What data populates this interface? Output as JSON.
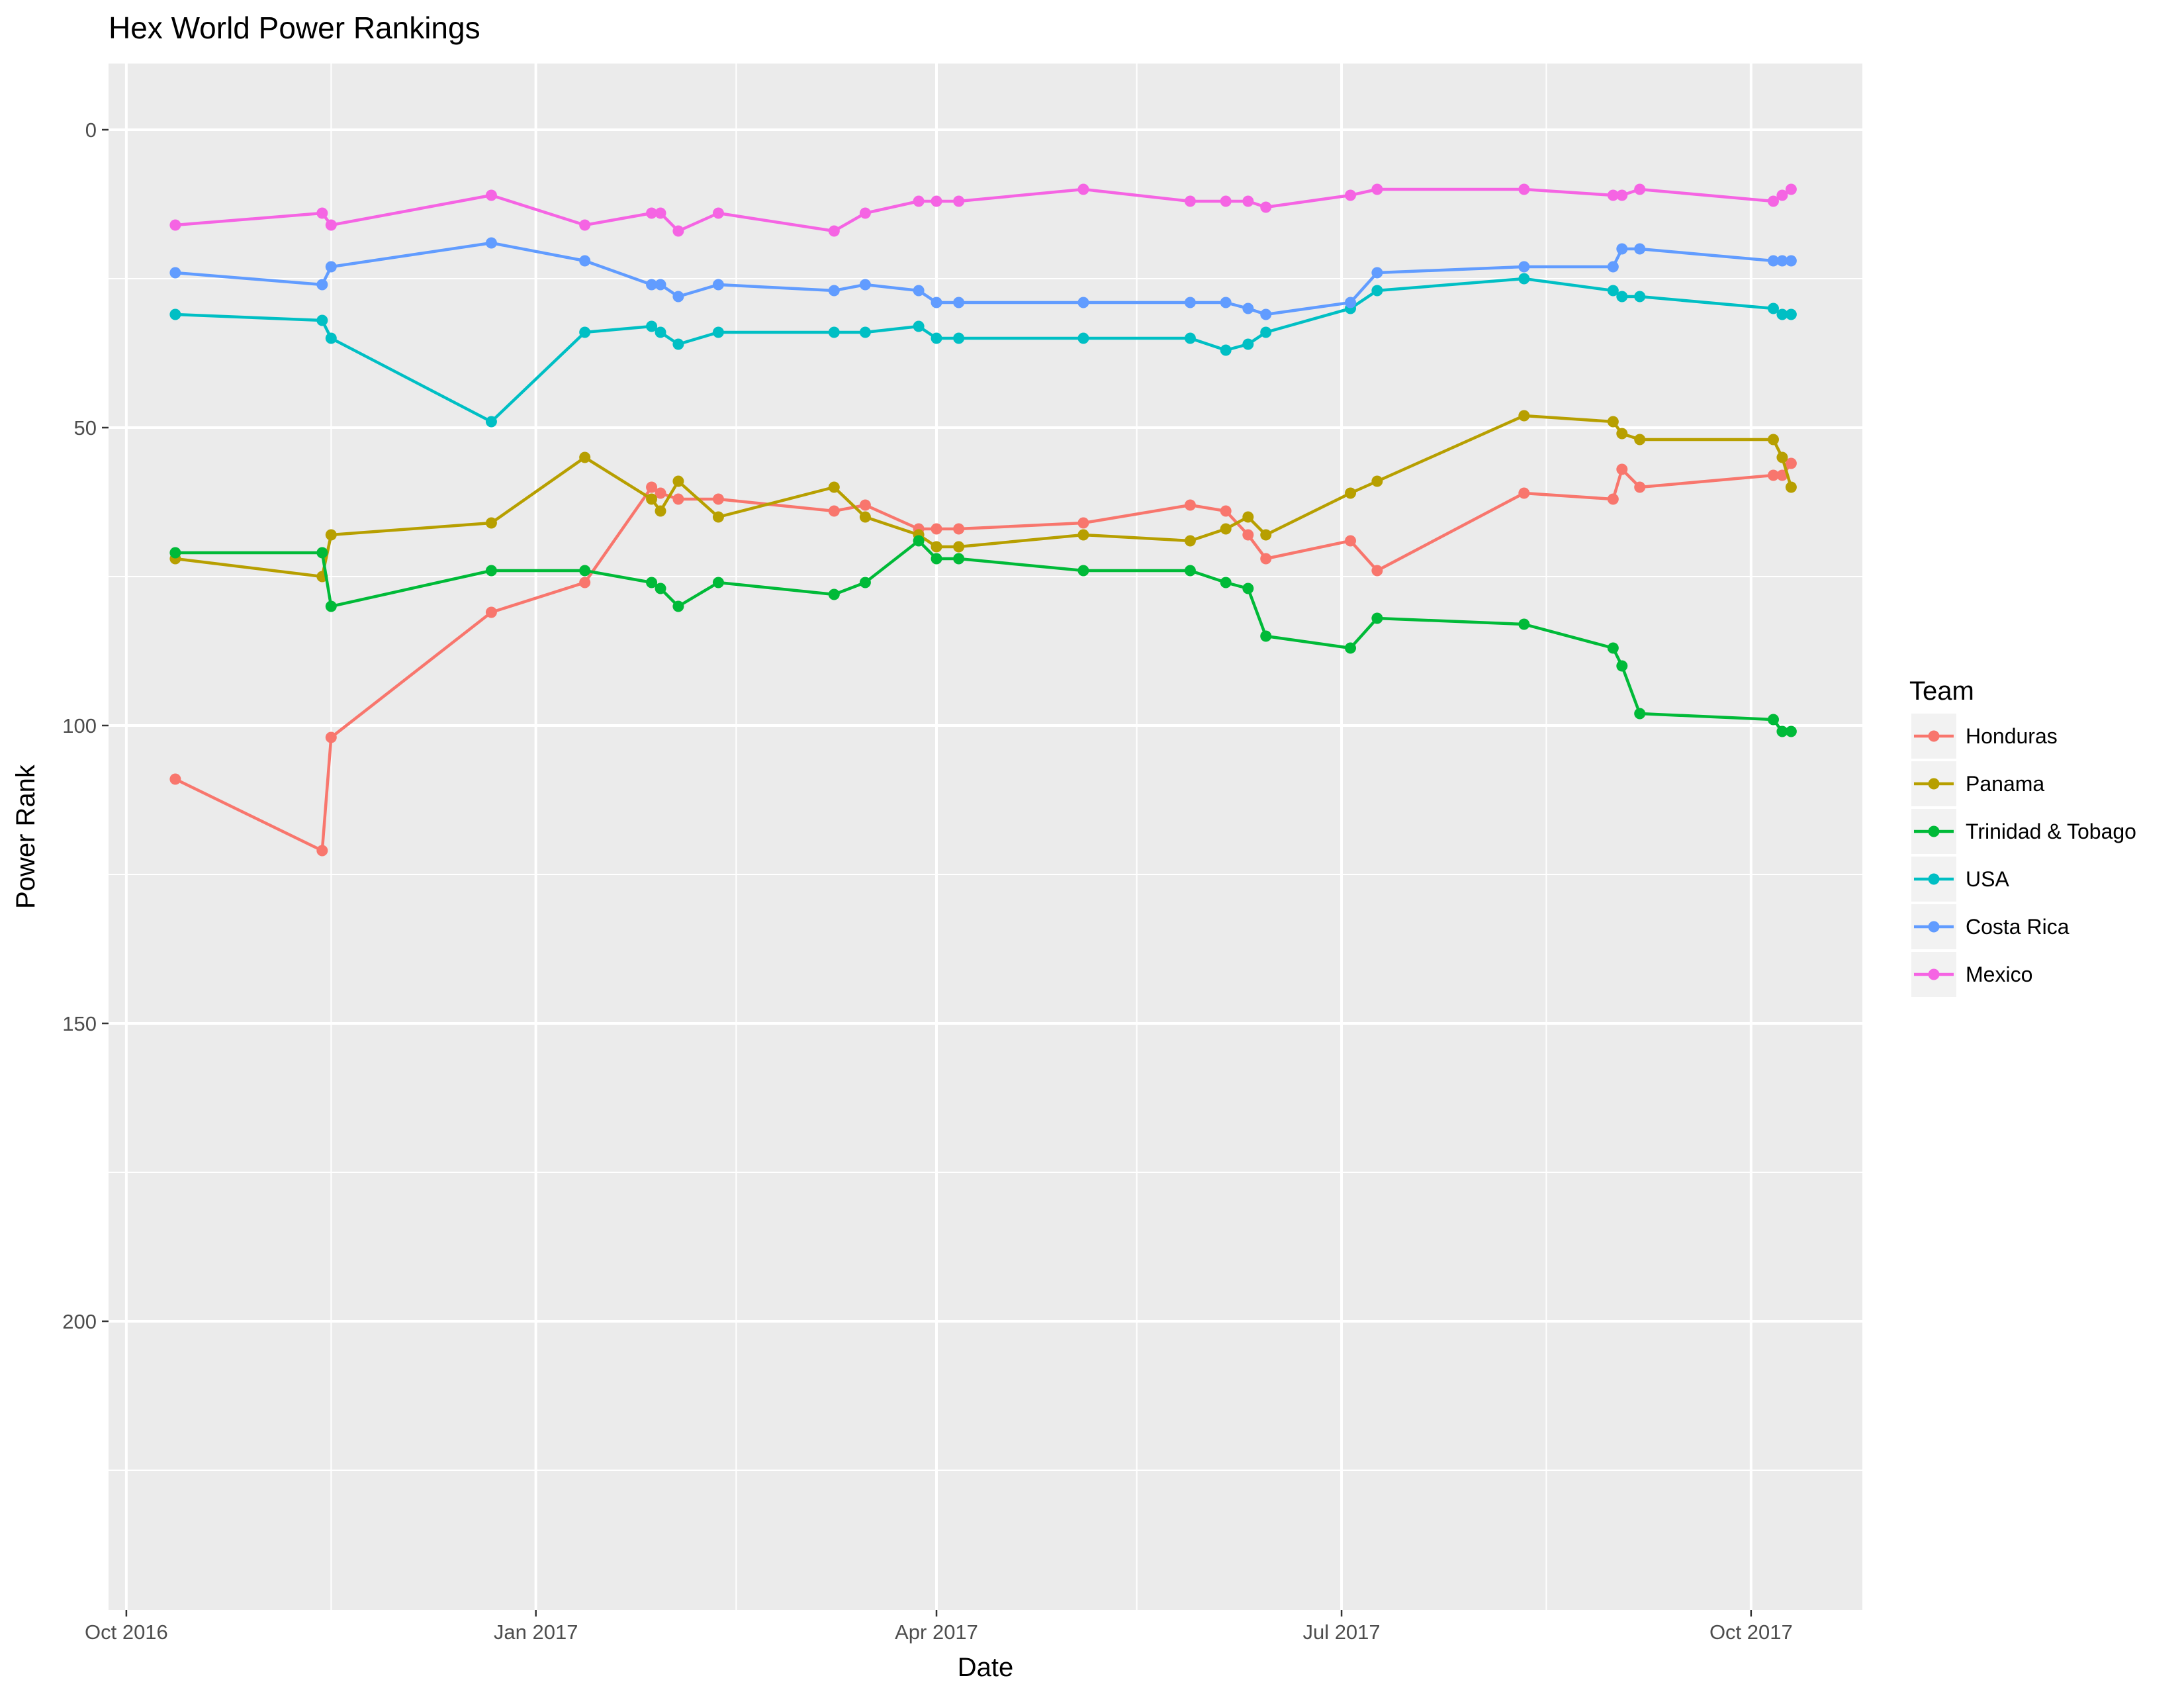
{
  "chart_data": {
    "type": "line",
    "title": "Hex World Power Rankings",
    "xlabel": "Date",
    "ylabel": "Power Rank",
    "y_reversed": true,
    "ylim": [
      0,
      240
    ],
    "xlim": [
      "2016-09-27",
      "2017-10-26"
    ],
    "x_ticks": [
      {
        "date": "2016-10-01",
        "label": "Oct 2016"
      },
      {
        "date": "2017-01-01",
        "label": "Jan 2017"
      },
      {
        "date": "2017-04-01",
        "label": "Apr 2017"
      },
      {
        "date": "2017-07-01",
        "label": "Jul 2017"
      },
      {
        "date": "2017-10-01",
        "label": "Oct 2017"
      }
    ],
    "x_minor_ticks": [
      "2016-11-16",
      "2017-02-15",
      "2017-05-16",
      "2017-08-16"
    ],
    "y_ticks": [
      0,
      50,
      100,
      150,
      200
    ],
    "y_minor_ticks": [
      25,
      75,
      125,
      175,
      225
    ],
    "grid": true,
    "legend": {
      "title": "Team",
      "position": "right"
    },
    "series": [
      {
        "name": "Honduras",
        "color": "#F8766D",
        "points": [
          [
            "2016-10-12",
            109
          ],
          [
            "2016-11-14",
            121
          ],
          [
            "2016-11-16",
            102
          ],
          [
            "2016-12-22",
            81
          ],
          [
            "2017-01-12",
            76
          ],
          [
            "2017-01-27",
            60
          ],
          [
            "2017-01-29",
            61
          ],
          [
            "2017-02-02",
            62
          ],
          [
            "2017-02-11",
            62
          ],
          [
            "2017-03-09",
            64
          ],
          [
            "2017-03-16",
            63
          ],
          [
            "2017-03-28",
            67
          ],
          [
            "2017-04-01",
            67
          ],
          [
            "2017-04-06",
            67
          ],
          [
            "2017-05-04",
            66
          ],
          [
            "2017-05-28",
            63
          ],
          [
            "2017-06-05",
            64
          ],
          [
            "2017-06-10",
            68
          ],
          [
            "2017-06-14",
            72
          ],
          [
            "2017-07-03",
            69
          ],
          [
            "2017-07-09",
            74
          ],
          [
            "2017-08-11",
            61
          ],
          [
            "2017-08-31",
            62
          ],
          [
            "2017-09-02",
            57
          ],
          [
            "2017-09-06",
            60
          ],
          [
            "2017-10-06",
            58
          ],
          [
            "2017-10-08",
            58
          ],
          [
            "2017-10-10",
            56
          ]
        ]
      },
      {
        "name": "Panama",
        "color": "#B79F00",
        "points": [
          [
            "2016-10-12",
            72
          ],
          [
            "2016-11-14",
            75
          ],
          [
            "2016-11-16",
            68
          ],
          [
            "2016-12-22",
            66
          ],
          [
            "2017-01-12",
            55
          ],
          [
            "2017-01-27",
            62
          ],
          [
            "2017-01-29",
            64
          ],
          [
            "2017-02-02",
            59
          ],
          [
            "2017-02-11",
            65
          ],
          [
            "2017-03-09",
            60
          ],
          [
            "2017-03-16",
            65
          ],
          [
            "2017-03-28",
            68
          ],
          [
            "2017-04-01",
            70
          ],
          [
            "2017-04-06",
            70
          ],
          [
            "2017-05-04",
            68
          ],
          [
            "2017-05-28",
            69
          ],
          [
            "2017-06-05",
            67
          ],
          [
            "2017-06-10",
            65
          ],
          [
            "2017-06-14",
            68
          ],
          [
            "2017-07-03",
            61
          ],
          [
            "2017-07-09",
            59
          ],
          [
            "2017-08-11",
            48
          ],
          [
            "2017-08-31",
            49
          ],
          [
            "2017-09-02",
            51
          ],
          [
            "2017-09-06",
            52
          ],
          [
            "2017-10-06",
            52
          ],
          [
            "2017-10-08",
            55
          ],
          [
            "2017-10-10",
            60
          ]
        ]
      },
      {
        "name": "Trinidad & Tobago",
        "color": "#00BA38",
        "points": [
          [
            "2016-10-12",
            71
          ],
          [
            "2016-11-14",
            71
          ],
          [
            "2016-11-16",
            80
          ],
          [
            "2016-12-22",
            74
          ],
          [
            "2017-01-12",
            74
          ],
          [
            "2017-01-27",
            76
          ],
          [
            "2017-01-29",
            77
          ],
          [
            "2017-02-02",
            80
          ],
          [
            "2017-02-11",
            76
          ],
          [
            "2017-03-09",
            78
          ],
          [
            "2017-03-16",
            76
          ],
          [
            "2017-03-28",
            69
          ],
          [
            "2017-04-01",
            72
          ],
          [
            "2017-04-06",
            72
          ],
          [
            "2017-05-04",
            74
          ],
          [
            "2017-05-28",
            74
          ],
          [
            "2017-06-05",
            76
          ],
          [
            "2017-06-10",
            77
          ],
          [
            "2017-06-14",
            85
          ],
          [
            "2017-07-03",
            87
          ],
          [
            "2017-07-09",
            82
          ],
          [
            "2017-08-11",
            83
          ],
          [
            "2017-08-31",
            87
          ],
          [
            "2017-09-02",
            90
          ],
          [
            "2017-09-06",
            98
          ],
          [
            "2017-10-06",
            99
          ],
          [
            "2017-10-08",
            101
          ],
          [
            "2017-10-10",
            101
          ]
        ]
      },
      {
        "name": "USA",
        "color": "#00BFC4",
        "points": [
          [
            "2016-10-12",
            31
          ],
          [
            "2016-11-14",
            32
          ],
          [
            "2016-11-16",
            35
          ],
          [
            "2016-12-22",
            49
          ],
          [
            "2017-01-12",
            34
          ],
          [
            "2017-01-27",
            33
          ],
          [
            "2017-01-29",
            34
          ],
          [
            "2017-02-02",
            36
          ],
          [
            "2017-02-11",
            34
          ],
          [
            "2017-03-09",
            34
          ],
          [
            "2017-03-16",
            34
          ],
          [
            "2017-03-28",
            33
          ],
          [
            "2017-04-01",
            35
          ],
          [
            "2017-04-06",
            35
          ],
          [
            "2017-05-04",
            35
          ],
          [
            "2017-05-28",
            35
          ],
          [
            "2017-06-05",
            37
          ],
          [
            "2017-06-10",
            36
          ],
          [
            "2017-06-14",
            34
          ],
          [
            "2017-07-03",
            30
          ],
          [
            "2017-07-09",
            27
          ],
          [
            "2017-08-11",
            25
          ],
          [
            "2017-08-31",
            27
          ],
          [
            "2017-09-02",
            28
          ],
          [
            "2017-09-06",
            28
          ],
          [
            "2017-10-06",
            30
          ],
          [
            "2017-10-08",
            31
          ],
          [
            "2017-10-10",
            31
          ]
        ]
      },
      {
        "name": "Costa Rica",
        "color": "#619CFF",
        "points": [
          [
            "2016-10-12",
            24
          ],
          [
            "2016-11-14",
            26
          ],
          [
            "2016-11-16",
            23
          ],
          [
            "2016-12-22",
            19
          ],
          [
            "2017-01-12",
            22
          ],
          [
            "2017-01-27",
            26
          ],
          [
            "2017-01-29",
            26
          ],
          [
            "2017-02-02",
            28
          ],
          [
            "2017-02-11",
            26
          ],
          [
            "2017-03-09",
            27
          ],
          [
            "2017-03-16",
            26
          ],
          [
            "2017-03-28",
            27
          ],
          [
            "2017-04-01",
            29
          ],
          [
            "2017-04-06",
            29
          ],
          [
            "2017-05-04",
            29
          ],
          [
            "2017-05-28",
            29
          ],
          [
            "2017-06-05",
            29
          ],
          [
            "2017-06-10",
            30
          ],
          [
            "2017-06-14",
            31
          ],
          [
            "2017-07-03",
            29
          ],
          [
            "2017-07-09",
            24
          ],
          [
            "2017-08-11",
            23
          ],
          [
            "2017-08-31",
            23
          ],
          [
            "2017-09-02",
            20
          ],
          [
            "2017-09-06",
            20
          ],
          [
            "2017-10-06",
            22
          ],
          [
            "2017-10-08",
            22
          ],
          [
            "2017-10-10",
            22
          ]
        ]
      },
      {
        "name": "Mexico",
        "color": "#F564E3",
        "points": [
          [
            "2016-10-12",
            16
          ],
          [
            "2016-11-14",
            14
          ],
          [
            "2016-11-16",
            16
          ],
          [
            "2016-12-22",
            11
          ],
          [
            "2017-01-12",
            16
          ],
          [
            "2017-01-27",
            14
          ],
          [
            "2017-01-29",
            14
          ],
          [
            "2017-02-02",
            17
          ],
          [
            "2017-02-11",
            14
          ],
          [
            "2017-03-09",
            17
          ],
          [
            "2017-03-16",
            14
          ],
          [
            "2017-03-28",
            12
          ],
          [
            "2017-04-01",
            12
          ],
          [
            "2017-04-06",
            12
          ],
          [
            "2017-05-04",
            10
          ],
          [
            "2017-05-28",
            12
          ],
          [
            "2017-06-05",
            12
          ],
          [
            "2017-06-10",
            12
          ],
          [
            "2017-06-14",
            13
          ],
          [
            "2017-07-03",
            11
          ],
          [
            "2017-07-09",
            10
          ],
          [
            "2017-08-11",
            10
          ],
          [
            "2017-08-31",
            11
          ],
          [
            "2017-09-02",
            11
          ],
          [
            "2017-09-06",
            10
          ],
          [
            "2017-10-06",
            12
          ],
          [
            "2017-10-08",
            11
          ],
          [
            "2017-10-10",
            10
          ]
        ]
      }
    ]
  }
}
